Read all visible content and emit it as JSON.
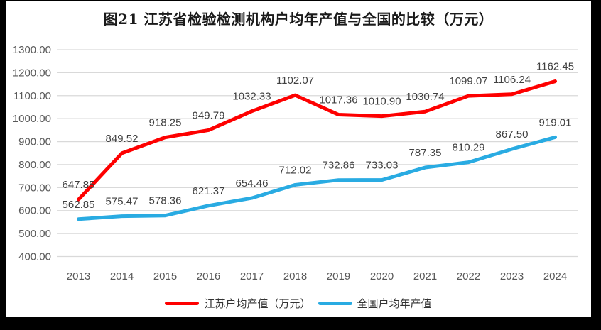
{
  "title": "图21  江苏省检验检测机构户均年产值与全国的比较（万元）",
  "colors": {
    "jiangsu_line": "#fe0000",
    "national_line": "#29abe2",
    "gridline": "#d9d9d9",
    "tick_text": "#595959",
    "data_label_text": "#404040",
    "frame": "#000000",
    "background": "#ffffff"
  },
  "legend": {
    "position": "bottom",
    "items": [
      {
        "label": "江苏户均产值（万元）",
        "color": "#fe0000"
      },
      {
        "label": "全国户均年产值",
        "color": "#29abe2"
      }
    ]
  },
  "chart_data": {
    "type": "line",
    "title": "图21  江苏省检验检测机构户均年产值与全国的比较（万元）",
    "categories": [
      "2013",
      "2014",
      "2015",
      "2016",
      "2017",
      "2018",
      "2019",
      "2020",
      "2021",
      "2022",
      "2023",
      "2024"
    ],
    "series": [
      {
        "name": "江苏户均产值（万元）",
        "color": "#fe0000",
        "values": [
          647.85,
          849.52,
          918.25,
          949.79,
          1032.33,
          1102.07,
          1017.36,
          1010.9,
          1030.74,
          1099.07,
          1106.24,
          1162.45
        ]
      },
      {
        "name": "全国户均年产值",
        "color": "#29abe2",
        "values": [
          562.85,
          575.47,
          578.36,
          621.37,
          654.46,
          712.02,
          732.86,
          733.03,
          787.35,
          810.29,
          867.5,
          919.01
        ]
      }
    ],
    "xlabel": "",
    "ylabel": "",
    "ylim": [
      400,
      1300
    ],
    "ytick_step": 100,
    "yticks": [
      "400.00",
      "500.00",
      "600.00",
      "700.00",
      "800.00",
      "900.00",
      "1000.00",
      "1100.00",
      "1200.00",
      "1300.00"
    ],
    "grid": true,
    "data_labels": true,
    "data_label_format": "0.00",
    "legend_position": "bottom"
  }
}
